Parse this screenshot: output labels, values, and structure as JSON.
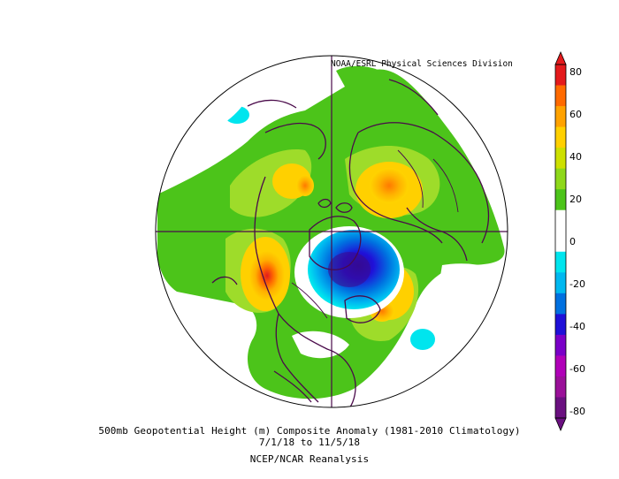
{
  "map": {
    "credit": "NOAA/ESRL Physical Sciences Division",
    "caption_line1": "500mb Geopotential Height (m) Composite Anomaly (1981-2010 Climatology)",
    "caption_line2": "7/1/18  to 11/5/18",
    "caption_line3": "NCEP/NCAR Reanalysis",
    "projection": "polar-stereographic",
    "center": "north-pole"
  },
  "colorbar": {
    "ticks": [
      "80",
      "60",
      "40",
      "20",
      "0",
      "-20",
      "-40",
      "-60",
      "-80"
    ],
    "colors": [
      "#e41a1c",
      "#ff6a00",
      "#ffa200",
      "#ffd000",
      "#cde000",
      "#8ed81a",
      "#4cc41a",
      "#ffffff",
      "#ffffff",
      "#00e5ee",
      "#00b8f0",
      "#0070e0",
      "#1f10d8",
      "#7a00c8",
      "#b000b8",
      "#9a1099",
      "#6a1080"
    ]
  }
}
